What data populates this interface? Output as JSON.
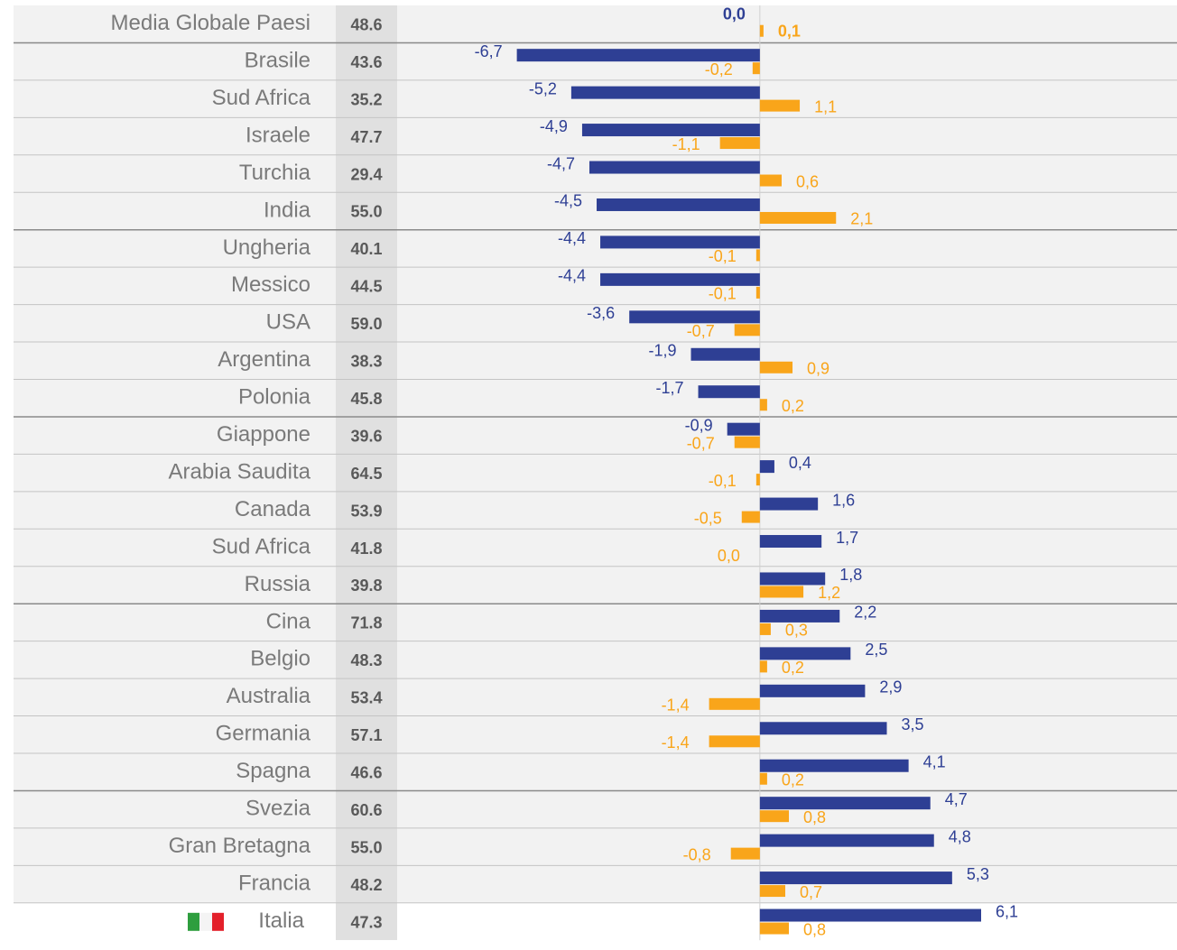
{
  "chart_data": {
    "type": "bar",
    "orientation": "horizontal",
    "categories": [
      "Media Globale Paesi",
      "Brasile",
      "Sud Africa",
      "Israele",
      "Turchia",
      "India",
      "Ungheria",
      "Messico",
      "USA",
      "Argentina",
      "Polonia",
      "Giappone",
      "Arabia Saudita",
      "Canada",
      "Sud Africa",
      "Russia",
      "Cina",
      "Belgio",
      "Australia",
      "Germania",
      "Spagna",
      "Svezia",
      "Gran Bretagna",
      "Francia",
      "Italia"
    ],
    "scores": [
      "48.6",
      "43.6",
      "35.2",
      "47.7",
      "29.4",
      "55.0",
      "40.1",
      "44.5",
      "59.0",
      "38.3",
      "45.8",
      "39.6",
      "64.5",
      "53.9",
      "41.8",
      "39.8",
      "71.8",
      "48.3",
      "53.4",
      "57.1",
      "46.6",
      "60.6",
      "55.0",
      "48.2",
      "47.3"
    ],
    "series": [
      {
        "color": "#2e3f94",
        "values": [
          0.0,
          -6.7,
          -5.2,
          -4.9,
          -4.7,
          -4.5,
          -4.4,
          -4.4,
          -3.6,
          -1.9,
          -1.7,
          -0.9,
          0.4,
          1.6,
          1.7,
          1.8,
          2.2,
          2.5,
          2.9,
          3.5,
          4.1,
          4.7,
          4.8,
          5.3,
          6.1
        ],
        "value_labels": [
          "0,0",
          "-6,7",
          "-5,2",
          "-4,9",
          "-4,7",
          "-4,5",
          "-4,4",
          "-4,4",
          "-3,6",
          "-1,9",
          "-1,7",
          "-0,9",
          "0,4",
          "1,6",
          "1,7",
          "1,8",
          "2,2",
          "2,5",
          "2,9",
          "3,5",
          "4,1",
          "4,7",
          "4,8",
          "5,3",
          "6,1"
        ]
      },
      {
        "color": "#f9a51a",
        "values": [
          0.1,
          -0.2,
          1.1,
          -1.1,
          0.6,
          2.1,
          -0.1,
          -0.1,
          -0.7,
          0.9,
          0.2,
          -0.7,
          -0.1,
          -0.5,
          0.0,
          1.2,
          0.3,
          0.2,
          -1.4,
          -1.4,
          0.2,
          0.8,
          -0.8,
          0.7,
          0.8
        ],
        "value_labels": [
          "0,1",
          "-0,2",
          "1,1",
          "-1,1",
          "0,6",
          "2,1",
          "-0,1",
          "-0,1",
          "-0,7",
          "0,9",
          "0,2",
          "-0,7",
          "-0,1",
          "-0,5",
          "0,0",
          "1,2",
          "0,3",
          "0,2",
          "-1,4",
          "-1,4",
          "0,2",
          "0,8",
          "-0,8",
          "0,7",
          "0,8"
        ]
      }
    ],
    "xlim": [
      -10,
      11.5
    ]
  }
}
